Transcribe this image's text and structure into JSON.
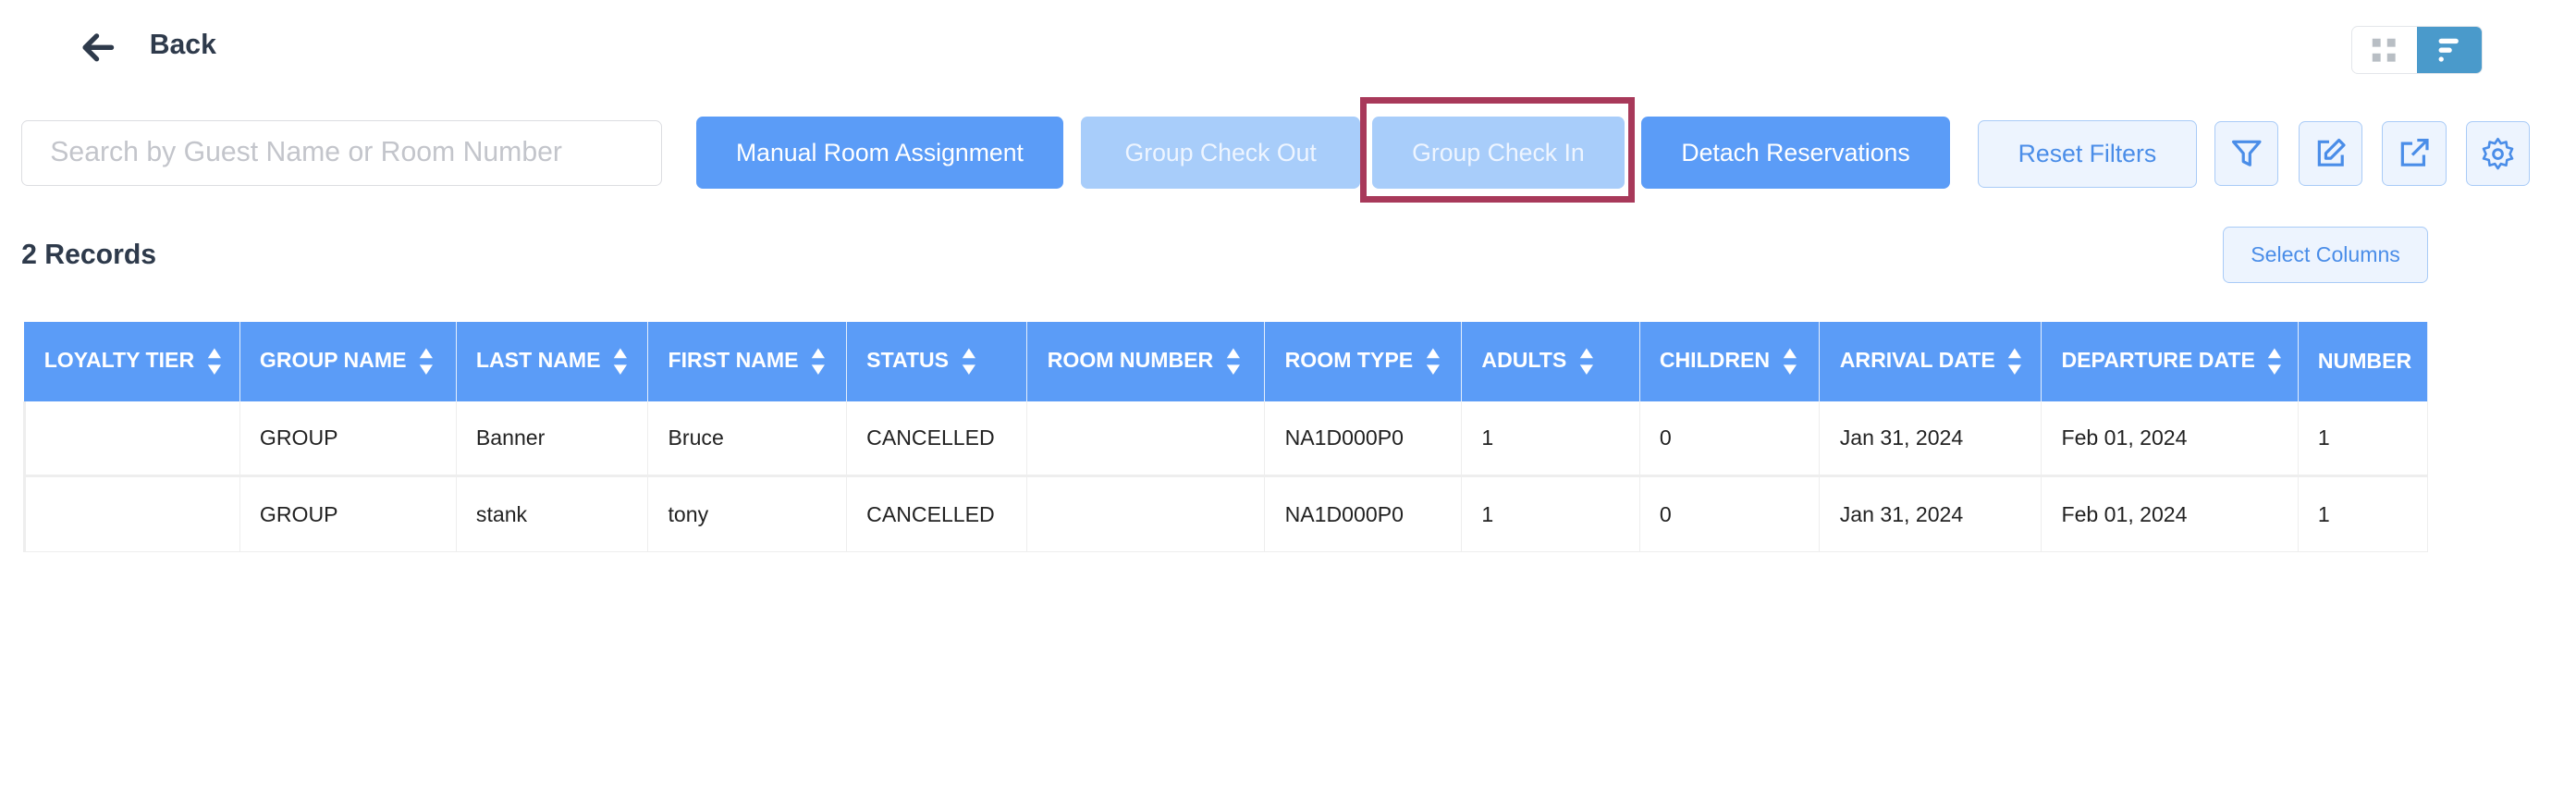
{
  "header": {
    "back_label": "Back",
    "view_toggle": {
      "options": [
        "grid-icon",
        "list-icon"
      ],
      "active": "list-icon",
      "active_color": "#4a9acb"
    }
  },
  "toolbar": {
    "search_placeholder": "Search by Guest Name or Room Number",
    "search_value": "",
    "manual_room_assignment": "Manual Room Assignment",
    "group_check_out": "Group Check Out",
    "group_check_in": "Group Check In",
    "detach_reservations": "Detach Reservations",
    "reset_filters": "Reset Filters",
    "icons": [
      "filter-icon",
      "edit-icon",
      "export-icon",
      "settings-icon"
    ]
  },
  "records": {
    "count_label": "2 Records",
    "select_columns": "Select Columns"
  },
  "colors": {
    "primary": "#5b9cf7",
    "disabled": "#a8cdfa",
    "highlight": "#a8395a"
  },
  "table": {
    "columns": [
      "LOYALTY TIER",
      "GROUP NAME",
      "LAST NAME",
      "FIRST NAME",
      "STATUS",
      "ROOM NUMBER",
      "ROOM TYPE",
      "ADULTS",
      "CHILDREN",
      "ARRIVAL DATE",
      "DEPARTURE DATE",
      "NUMBER"
    ],
    "rows": [
      [
        "",
        "GROUP",
        "Banner",
        "Bruce",
        "CANCELLED",
        "",
        "NA1D000P0",
        "1",
        "0",
        "Jan 31, 2024",
        "Feb 01, 2024",
        "1"
      ],
      [
        "",
        "GROUP",
        "stank",
        "tony",
        "CANCELLED",
        "",
        "NA1D000P0",
        "1",
        "0",
        "Jan 31, 2024",
        "Feb 01, 2024",
        "1"
      ]
    ]
  }
}
